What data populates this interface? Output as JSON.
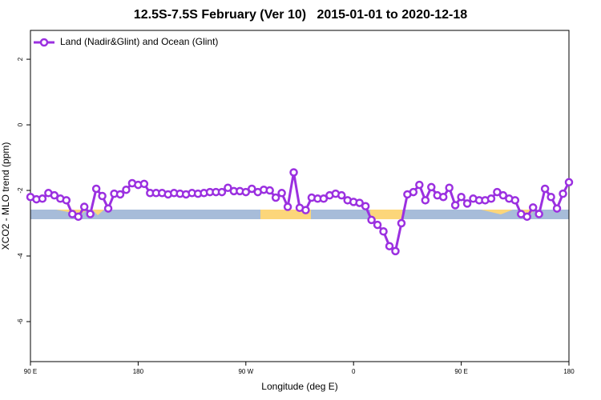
{
  "chart_data": {
    "type": "line",
    "title": "12.5S-7.5S February (Ver 10)   2015-01-01 to 2020-12-18",
    "xlabel": "Longitude (deg E)",
    "ylabel": "XCO2 - MLO trend (ppm)",
    "xlim": [
      90,
      540
    ],
    "ylim": [
      -7.22,
      2.88
    ],
    "xticks": [
      {
        "value": 90,
        "label": "90 E"
      },
      180,
      {
        "value": 270,
        "label": "90 W"
      },
      {
        "value": 360,
        "label": "0"
      },
      {
        "value": 450,
        "label": "90 E"
      },
      {
        "value": 540,
        "label": "180"
      }
    ],
    "yticks": [
      2,
      0,
      -2,
      -4,
      -6
    ],
    "legend": "top-left",
    "x": [
      90,
      95,
      100,
      105,
      110,
      115,
      120,
      125,
      130,
      135,
      140,
      145,
      150,
      155,
      160,
      165,
      170,
      175,
      180,
      185,
      190,
      195,
      200,
      205,
      210,
      215,
      220,
      225,
      230,
      235,
      240,
      245,
      250,
      255,
      260,
      265,
      270,
      275,
      280,
      285,
      290,
      295,
      300,
      305,
      310,
      315,
      320,
      325,
      330,
      335,
      340,
      345,
      350,
      355,
      360,
      365,
      370,
      375,
      380,
      385,
      390,
      395,
      400,
      405,
      410,
      415,
      420,
      425,
      430,
      435,
      440,
      445,
      450,
      455,
      460,
      465,
      470,
      475,
      480,
      485,
      490,
      495,
      500,
      505,
      510,
      515,
      520,
      525,
      530,
      535,
      540
    ],
    "series": [
      {
        "name": "Land (Nadir&Glint) and Ocean (Glint)",
        "color": "#9b30e0",
        "values": [
          -2.2,
          -2.27,
          -2.25,
          -2.08,
          -2.15,
          -2.25,
          -2.3,
          -2.72,
          -2.8,
          -2.5,
          -2.72,
          -1.95,
          -2.17,
          -2.55,
          -2.1,
          -2.12,
          -1.98,
          -1.78,
          -1.83,
          -1.8,
          -2.08,
          -2.08,
          -2.08,
          -2.12,
          -2.08,
          -2.1,
          -2.12,
          -2.08,
          -2.1,
          -2.08,
          -2.05,
          -2.05,
          -2.05,
          -1.92,
          -2.02,
          -2.02,
          -2.05,
          -1.95,
          -2.05,
          -1.98,
          -2.0,
          -2.22,
          -2.08,
          -2.5,
          -1.45,
          -2.53,
          -2.6,
          -2.22,
          -2.25,
          -2.25,
          -2.15,
          -2.1,
          -2.15,
          -2.3,
          -2.35,
          -2.38,
          -2.48,
          -2.9,
          -3.05,
          -3.25,
          -3.7,
          -3.85,
          -3.0,
          -2.12,
          -2.05,
          -1.83,
          -2.3,
          -1.9,
          -2.15,
          -2.2,
          -1.92,
          -2.45,
          -2.2,
          -2.4,
          -2.25,
          -2.3,
          -2.3,
          -2.25,
          -2.05,
          -2.15,
          -2.25,
          -2.3,
          -2.72,
          -2.8,
          -2.52,
          -2.72,
          -1.95,
          -2.2,
          -2.55,
          -2.1,
          -1.75
        ]
      }
    ]
  }
}
